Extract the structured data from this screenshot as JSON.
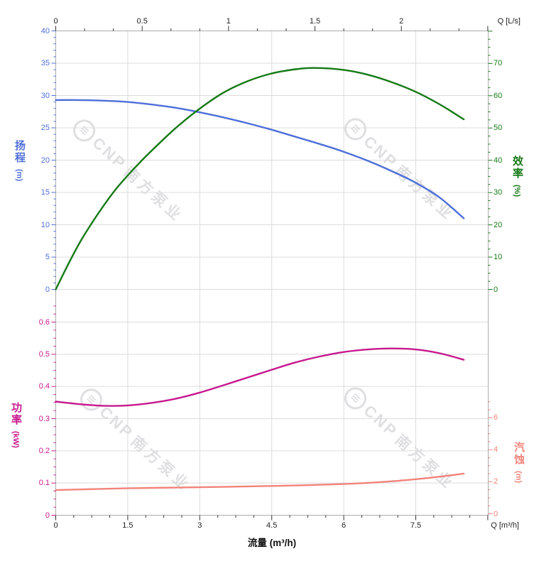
{
  "chart_data": {
    "type": "line",
    "description": "pump performance curves",
    "grid": true,
    "legend": "none",
    "x_bottom": {
      "axis_label": "流量 (m³/h)",
      "corner_label": "Q [m³/h]",
      "tick_labels": [
        "0",
        "1.5",
        "3",
        "4.5",
        "6",
        "7.5"
      ],
      "range": [
        0,
        9
      ],
      "major_step": 1.5,
      "minor_step": 0.375
    },
    "x_top": {
      "corner_label": "Q [L/s]",
      "tick_labels": [
        "0",
        "0.5",
        "1",
        "1.5",
        "2"
      ],
      "range": [
        0,
        2.5
      ],
      "major_step": 0.5,
      "minor_divisions": 3
    },
    "y_head": {
      "name": "扬程",
      "unit": "(m)",
      "tick_labels": [
        "0",
        "5",
        "10",
        "15",
        "20",
        "25",
        "30",
        "35",
        "40"
      ],
      "range": [
        0,
        40
      ],
      "minor_step": 1,
      "side": "left",
      "panel": "top",
      "color": "#4e6fd9"
    },
    "y_efficiency": {
      "name": "效率",
      "unit": "(%)",
      "tick_labels": [
        "0",
        "10",
        "20",
        "30",
        "40",
        "50",
        "60",
        "70"
      ],
      "range": [
        0,
        80
      ],
      "minor_step": 2.5,
      "side": "right",
      "panel": "top",
      "color": "#157a15"
    },
    "y_power": {
      "name": "功率",
      "unit": "(kW)",
      "tick_labels": [
        "0",
        "0.1",
        "0.2",
        "0.3",
        "0.4",
        "0.5",
        "0.6"
      ],
      "range": [
        0,
        0.66
      ],
      "minor_step": 0.025,
      "side": "left",
      "panel": "bottom",
      "color": "#c7188e"
    },
    "y_npsh": {
      "name": "汽蚀",
      "unit": "(m)",
      "tick_labels": [
        "0",
        "2",
        "4",
        "6"
      ],
      "range": [
        0,
        12
      ],
      "minor_step": 0.5,
      "side": "right",
      "panel": "bottom",
      "color": "#f2837a"
    },
    "series": [
      {
        "id": "head",
        "label": "扬程",
        "axis": "y_head",
        "color": "#4e6fd9",
        "points": [
          [
            0,
            29.3
          ],
          [
            0.5,
            29.3
          ],
          [
            1,
            29.2
          ],
          [
            1.5,
            29.0
          ],
          [
            2,
            28.6
          ],
          [
            2.5,
            28.1
          ],
          [
            3,
            27.4
          ],
          [
            3.5,
            26.6
          ],
          [
            4,
            25.7
          ],
          [
            4.5,
            24.7
          ],
          [
            5,
            23.6
          ],
          [
            5.5,
            22.5
          ],
          [
            6,
            21.3
          ],
          [
            6.5,
            19.9
          ],
          [
            7,
            18.3
          ],
          [
            7.5,
            16.5
          ],
          [
            8,
            14.2
          ],
          [
            8.5,
            11.0
          ]
        ]
      },
      {
        "id": "efficiency",
        "label": "效率",
        "axis": "y_efficiency",
        "color": "#157a15",
        "points": [
          [
            0,
            0
          ],
          [
            0.25,
            7.5
          ],
          [
            0.5,
            14.5
          ],
          [
            0.75,
            20.5
          ],
          [
            1,
            26
          ],
          [
            1.25,
            31
          ],
          [
            1.5,
            35.3
          ],
          [
            1.75,
            39.3
          ],
          [
            2,
            43
          ],
          [
            2.5,
            50
          ],
          [
            3,
            56
          ],
          [
            3.5,
            61
          ],
          [
            4,
            64.5
          ],
          [
            4.5,
            66.9
          ],
          [
            5,
            68.2
          ],
          [
            5.4,
            68.6
          ],
          [
            6,
            68
          ],
          [
            6.5,
            66.5
          ],
          [
            7,
            64.2
          ],
          [
            7.5,
            61.2
          ],
          [
            8,
            57.3
          ],
          [
            8.5,
            52.7
          ]
        ]
      },
      {
        "id": "power",
        "label": "功率",
        "axis": "y_power",
        "color": "#c7188e",
        "points": [
          [
            0,
            0.353
          ],
          [
            0.5,
            0.345
          ],
          [
            1,
            0.34
          ],
          [
            1.5,
            0.341
          ],
          [
            2,
            0.349
          ],
          [
            2.5,
            0.362
          ],
          [
            3,
            0.381
          ],
          [
            3.5,
            0.404
          ],
          [
            4,
            0.428
          ],
          [
            4.5,
            0.452
          ],
          [
            5,
            0.475
          ],
          [
            5.5,
            0.493
          ],
          [
            6,
            0.507
          ],
          [
            6.5,
            0.515
          ],
          [
            7,
            0.518
          ],
          [
            7.5,
            0.515
          ],
          [
            8,
            0.503
          ],
          [
            8.5,
            0.483
          ]
        ]
      },
      {
        "id": "npsh",
        "label": "汽蚀",
        "axis": "y_npsh",
        "color": "#f2837a",
        "points": [
          [
            0,
            1.48
          ],
          [
            1,
            1.56
          ],
          [
            2,
            1.62
          ],
          [
            3,
            1.66
          ],
          [
            4,
            1.71
          ],
          [
            5,
            1.77
          ],
          [
            6,
            1.86
          ],
          [
            6.5,
            1.93
          ],
          [
            7,
            2.03
          ],
          [
            7.5,
            2.16
          ],
          [
            8,
            2.32
          ],
          [
            8.5,
            2.51
          ]
        ]
      }
    ]
  },
  "watermark": {
    "logo_glyph": "≋",
    "brand": "CNP",
    "company": "南方泵业"
  }
}
